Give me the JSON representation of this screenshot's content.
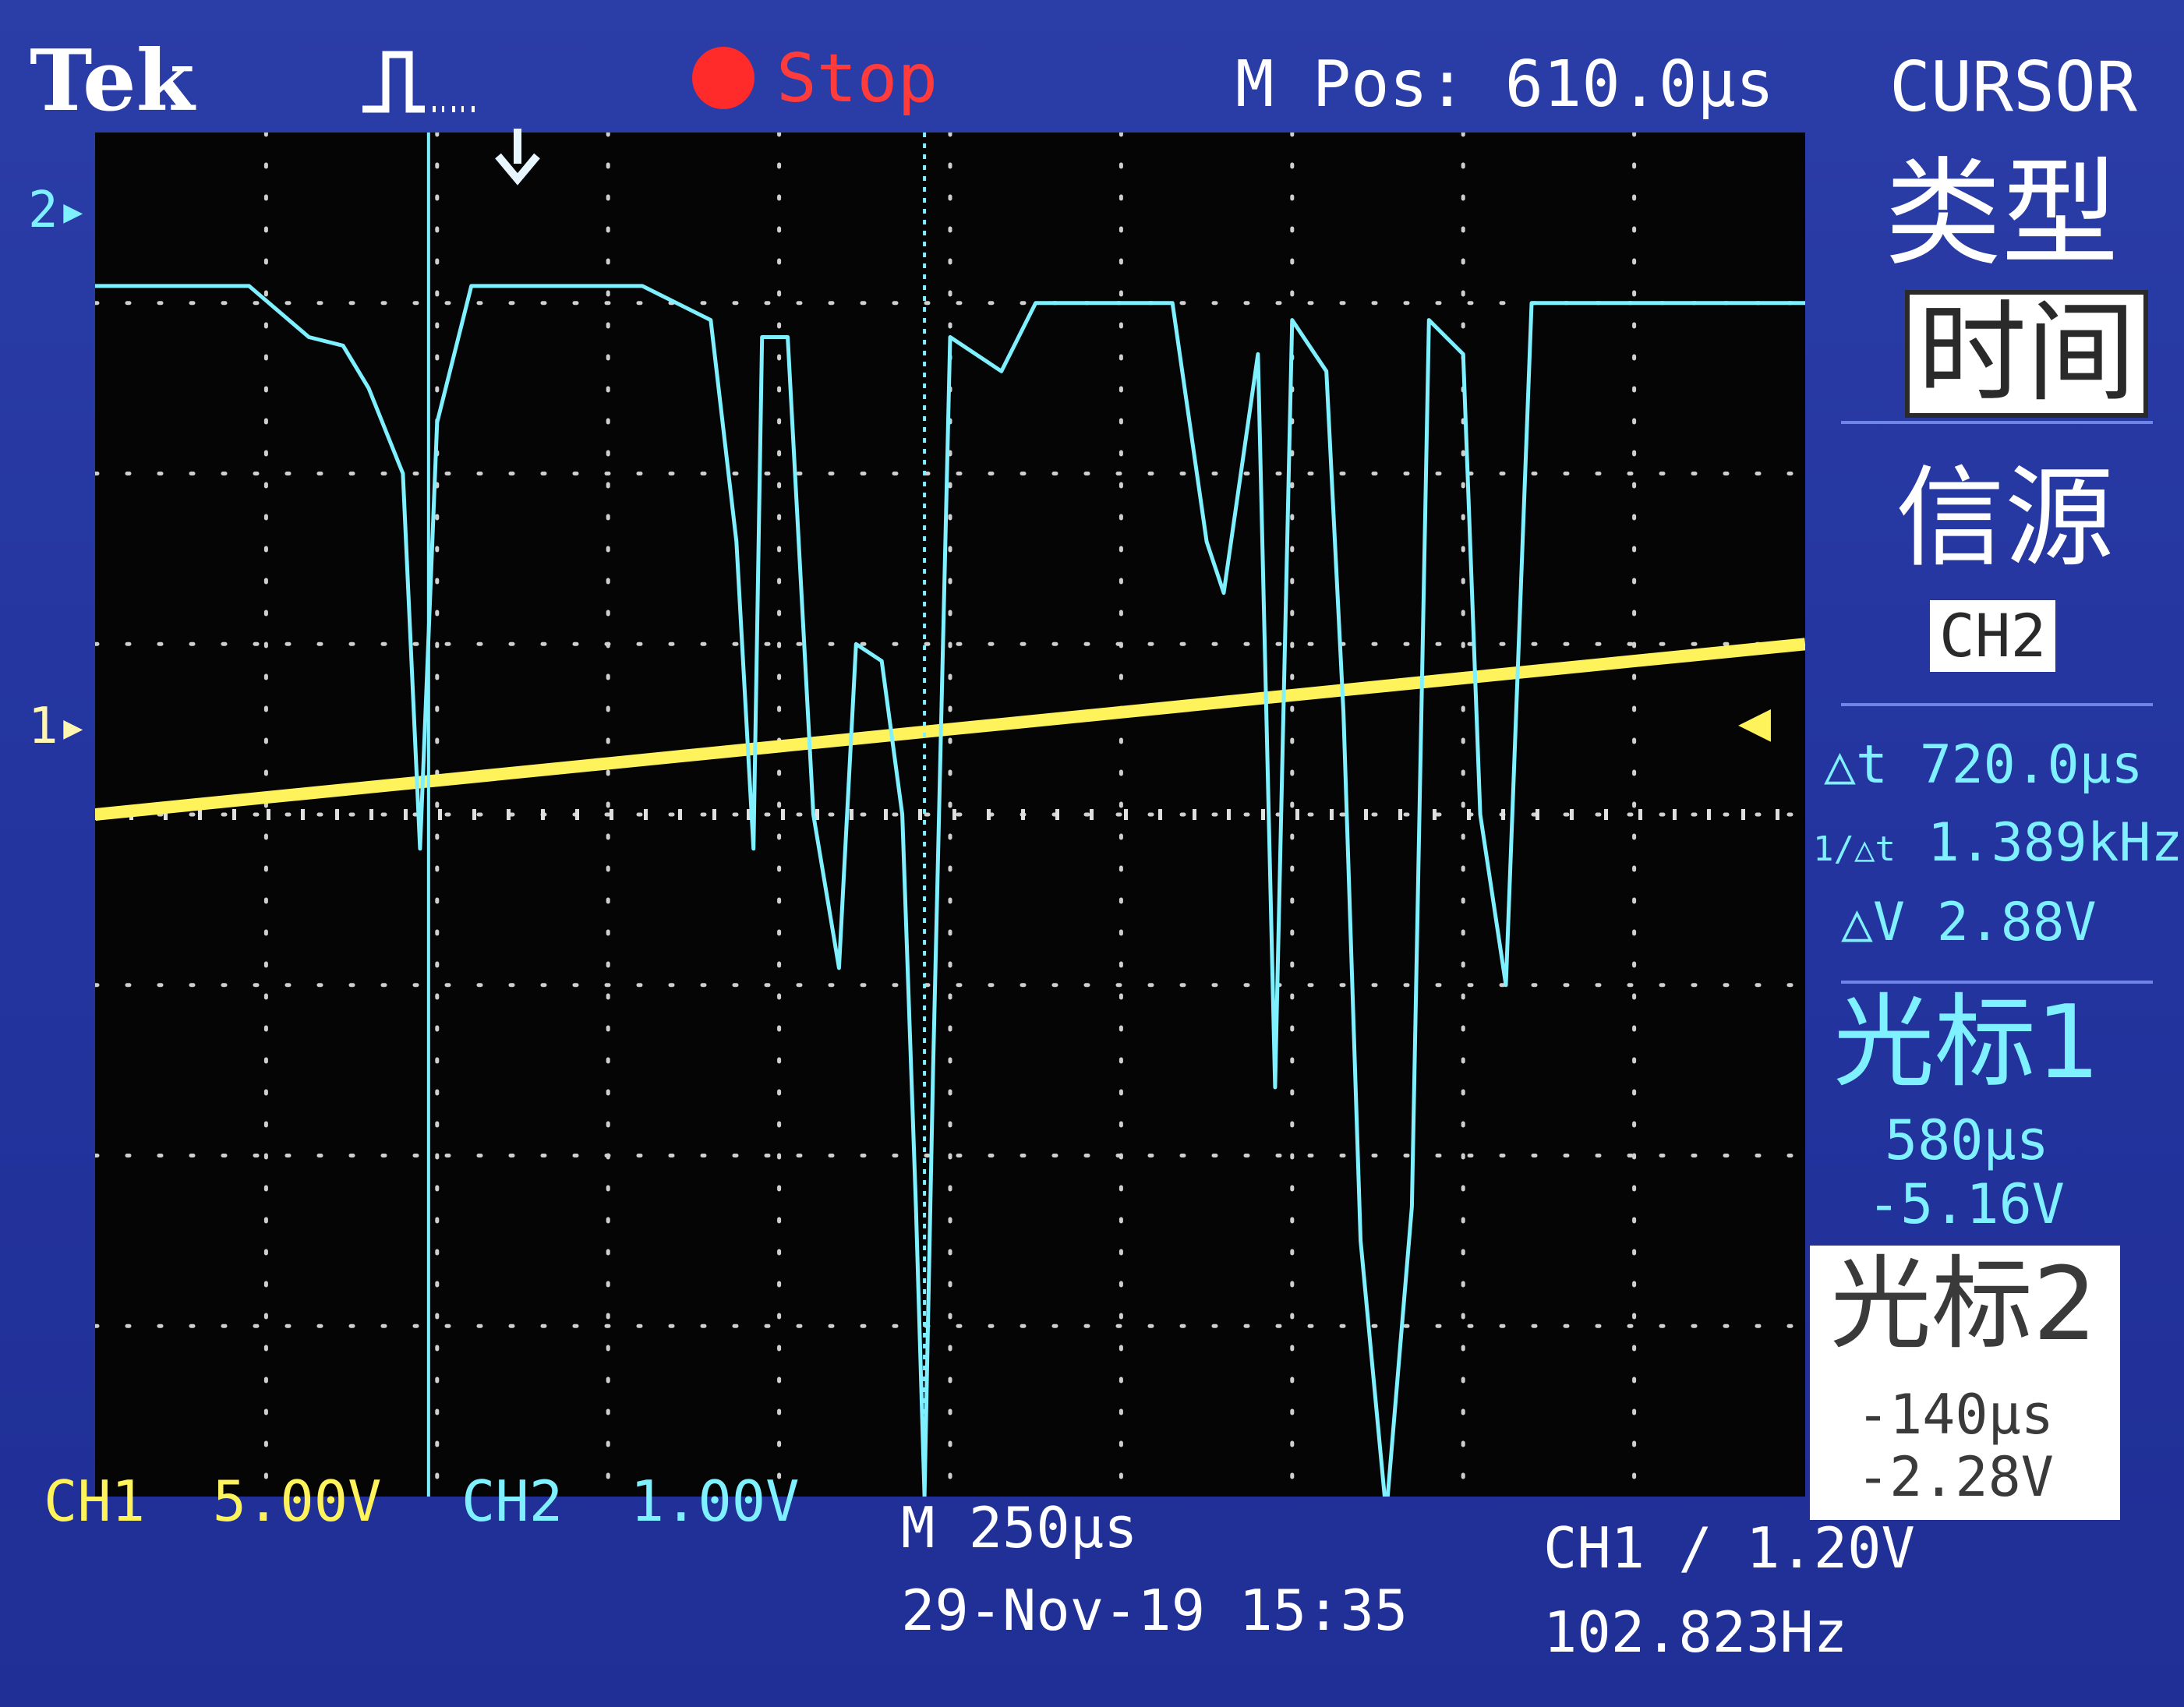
{
  "header": {
    "brand": "Tek",
    "status": "Stop",
    "m_pos_label": "M Pos: 610.0µs",
    "menu_title": "CURSOR"
  },
  "side_menu": {
    "type_label": "类型",
    "type_value": "时间",
    "source_label": "信源",
    "source_value": "CH2",
    "delta_t": "△t 720.0µs",
    "inv_delta_t": "1.389kHz",
    "delta_v": "△V 2.88V",
    "cursor1_label": "光标1",
    "cursor1_time": "580µs",
    "cursor1_volt": "-5.16V",
    "cursor2_label": "光标2",
    "cursor2_time": "-140µs",
    "cursor2_volt": "-2.28V"
  },
  "footer": {
    "ch1": "CH1  5.00V",
    "ch2": "CH2  1.00V",
    "timebase": "M 250µs",
    "date": "29-Nov-19 15:35",
    "trigger": "CH1 ∕ 1.20V",
    "frequency": "102.823Hz"
  },
  "markers": {
    "ch1": "1",
    "ch2": "2"
  },
  "colors": {
    "ch1": "#fff35c",
    "ch2": "#7ff0ff",
    "panel": "#2435a0",
    "stop_dot": "#ff2a2a"
  },
  "chart_data": {
    "type": "line",
    "series": [
      {
        "name": "CH1",
        "values": [
          [
            0,
            0.0
          ],
          [
            1,
            0.1
          ],
          [
            2,
            0.2
          ],
          [
            3,
            0.3
          ],
          [
            4,
            0.4
          ],
          [
            5,
            0.5
          ],
          [
            6,
            0.6
          ],
          [
            7,
            0.7
          ],
          [
            8,
            0.8
          ],
          [
            9,
            0.9
          ],
          [
            10,
            1.0
          ]
        ]
      },
      {
        "name": "CH2",
        "values": [
          [
            0.0,
            3.1
          ],
          [
            0.9,
            3.1
          ],
          [
            1.25,
            2.8
          ],
          [
            1.45,
            2.75
          ],
          [
            1.6,
            2.5
          ],
          [
            1.8,
            2.0
          ],
          [
            1.9,
            -0.2
          ],
          [
            2.0,
            2.3
          ],
          [
            2.2,
            3.1
          ],
          [
            3.2,
            3.1
          ],
          [
            3.6,
            2.9
          ],
          [
            3.75,
            1.6
          ],
          [
            3.85,
            -0.2
          ],
          [
            3.9,
            2.8
          ],
          [
            4.05,
            2.8
          ],
          [
            4.2,
            0.0
          ],
          [
            4.35,
            -0.9
          ],
          [
            4.45,
            1.0
          ],
          [
            4.6,
            0.9
          ],
          [
            4.72,
            0.0
          ],
          [
            4.8,
            -2.3
          ],
          [
            4.85,
            -4.0
          ],
          [
            4.9,
            -1.5
          ],
          [
            5.0,
            2.8
          ],
          [
            5.3,
            2.6
          ],
          [
            5.5,
            3.0
          ],
          [
            6.3,
            3.0
          ],
          [
            6.5,
            1.6
          ],
          [
            6.6,
            1.3
          ],
          [
            6.8,
            2.7
          ],
          [
            6.9,
            -1.6
          ],
          [
            7.0,
            2.9
          ],
          [
            7.2,
            2.6
          ],
          [
            7.3,
            0.6
          ],
          [
            7.4,
            -2.5
          ],
          [
            7.55,
            -4.1
          ],
          [
            7.7,
            -2.3
          ],
          [
            7.8,
            2.9
          ],
          [
            8.0,
            2.7
          ],
          [
            8.1,
            0.0
          ],
          [
            8.25,
            -1.0
          ],
          [
            8.4,
            3.0
          ],
          [
            10.0,
            3.0
          ]
        ]
      }
    ],
    "xlim": [
      0,
      10
    ],
    "ylim": [
      -4,
      4
    ],
    "grid": true,
    "cursors": [
      {
        "name": "cursor1",
        "x": 1.95
      },
      {
        "name": "cursor2",
        "x": 4.85
      }
    ]
  }
}
